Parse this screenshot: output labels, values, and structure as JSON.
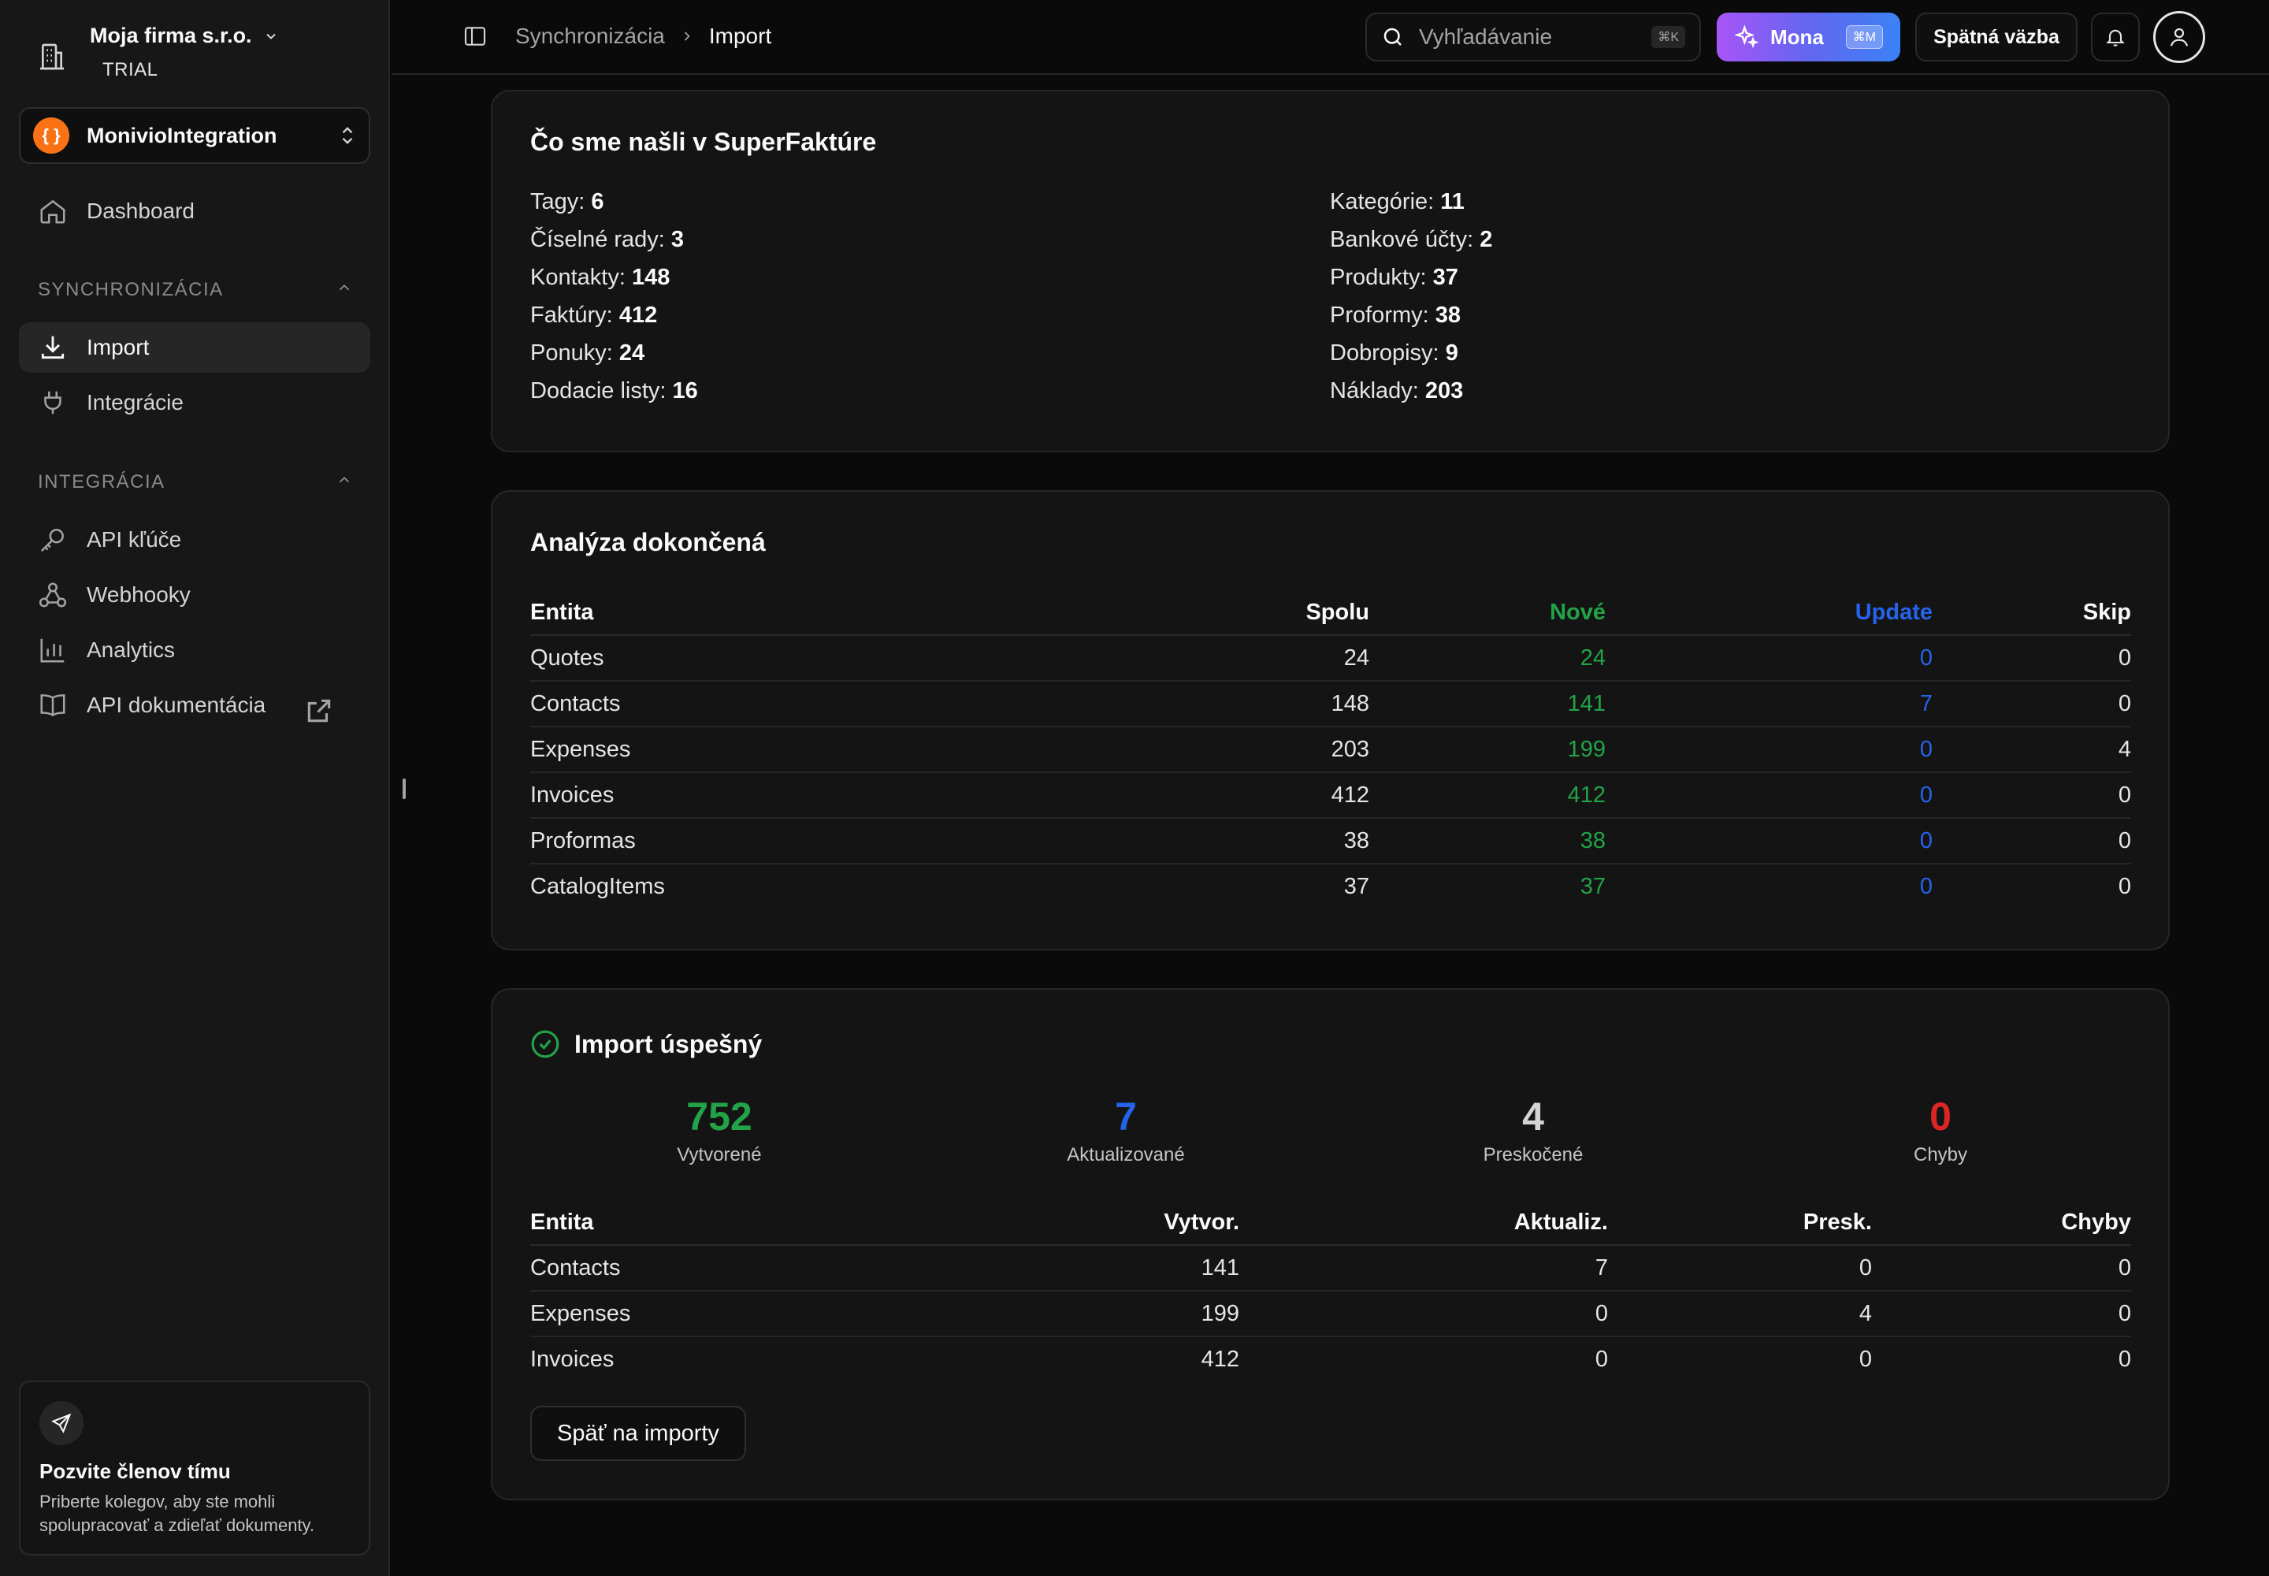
{
  "org": {
    "name": "Moja firma s.r.o.",
    "plan": "TRIAL"
  },
  "project": {
    "name": "MonivioIntegration",
    "icon_glyph": "{ }"
  },
  "nav": {
    "dashboard": "Dashboard",
    "sync_section": "SYNCHRONIZÁCIA",
    "import": "Import",
    "integrations": "Integrácie",
    "integ_section": "INTEGRÁCIA",
    "api_keys": "API kľúče",
    "webhooks": "Webhooky",
    "analytics": "Analytics",
    "api_docs": "API dokumentácia"
  },
  "invite": {
    "title": "Pozvite členov tímu",
    "desc": "Priberte kolegov, aby ste mohli spolupracovať a zdieľať dokumenty."
  },
  "topbar": {
    "crumb1": "Synchronizácia",
    "crumb2": "Import",
    "search_placeholder": "Vyhľadávanie",
    "search_kbd": "⌘K",
    "mona_label": "Mona",
    "mona_kbd": "⌘M",
    "feedback": "Spätná väzba"
  },
  "found": {
    "title": "Čo sme našli v SuperFaktúre",
    "items": [
      {
        "label": "Tagy:",
        "value": "6"
      },
      {
        "label": "Kategórie:",
        "value": "11"
      },
      {
        "label": "Číselné rady:",
        "value": "3"
      },
      {
        "label": "Bankové účty:",
        "value": "2"
      },
      {
        "label": "Kontakty:",
        "value": "148"
      },
      {
        "label": "Produkty:",
        "value": "37"
      },
      {
        "label": "Faktúry:",
        "value": "412"
      },
      {
        "label": "Proformy:",
        "value": "38"
      },
      {
        "label": "Ponuky:",
        "value": "24"
      },
      {
        "label": "Dobropisy:",
        "value": "9"
      },
      {
        "label": "Dodacie listy:",
        "value": "16"
      },
      {
        "label": "Náklady:",
        "value": "203"
      }
    ]
  },
  "analysis": {
    "title": "Analýza dokončená",
    "headers": [
      "Entita",
      "Spolu",
      "Nové",
      "Update",
      "Skip"
    ],
    "rows": [
      [
        "Quotes",
        "24",
        "24",
        "0",
        "0"
      ],
      [
        "Contacts",
        "148",
        "141",
        "7",
        "0"
      ],
      [
        "Expenses",
        "203",
        "199",
        "0",
        "4"
      ],
      [
        "Invoices",
        "412",
        "412",
        "0",
        "0"
      ],
      [
        "Proformas",
        "38",
        "38",
        "0",
        "0"
      ],
      [
        "CatalogItems",
        "37",
        "37",
        "0",
        "0"
      ]
    ]
  },
  "result": {
    "title": "Import úspešný",
    "stats": [
      {
        "value": "752",
        "label": "Vytvorené"
      },
      {
        "value": "7",
        "label": "Aktualizované"
      },
      {
        "value": "4",
        "label": "Preskočené"
      },
      {
        "value": "0",
        "label": "Chyby"
      }
    ],
    "headers": [
      "Entita",
      "Vytvor.",
      "Aktualiz.",
      "Presk.",
      "Chyby"
    ],
    "rows": [
      [
        "Contacts",
        "141",
        "7",
        "0",
        "0"
      ],
      [
        "Expenses",
        "199",
        "0",
        "4",
        "0"
      ],
      [
        "Invoices",
        "412",
        "0",
        "0",
        "0"
      ]
    ],
    "back_button": "Späť na importy"
  },
  "colors": {
    "green": "#22a348",
    "blue": "#2563eb",
    "red": "#dc2626",
    "accent_orange": "#f97316"
  }
}
